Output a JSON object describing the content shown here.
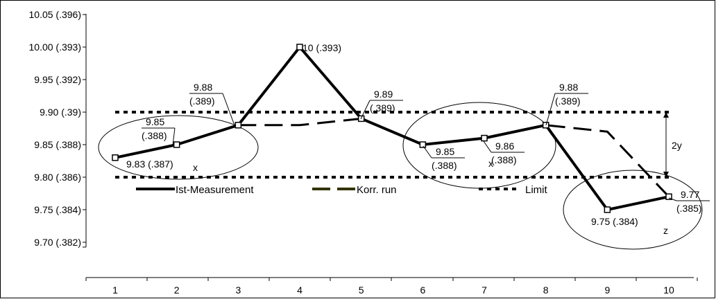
{
  "chart_data": {
    "type": "line",
    "title": "",
    "xlabel": "",
    "ylabel": "",
    "x": [
      1,
      2,
      3,
      4,
      5,
      6,
      7,
      8,
      9,
      10
    ],
    "x_tick_labels": [
      "1",
      "2",
      "3",
      "4",
      "5",
      "6",
      "7",
      "8",
      "9",
      "10"
    ],
    "y_ticks": [
      9.7,
      9.75,
      9.8,
      9.85,
      9.9,
      9.95,
      10.0,
      10.05
    ],
    "y_tick_labels": [
      "9.70 (.382)",
      "9.75 (.384)",
      "9.80 (.386)",
      "9.85 (.388)",
      "9.90 (.39)",
      "9.95 (.392)",
      "10.00 (.393)",
      "10.05 (.396)"
    ],
    "ylim": [
      9.7,
      10.05
    ],
    "grid": false,
    "legend_placement": "bottom-left",
    "series": [
      {
        "name": "Ist-Measurement",
        "style": "solid-thick",
        "color": "#000000",
        "marker": "open-square",
        "x": [
          1,
          2,
          3,
          4,
          5,
          6,
          7,
          8,
          9,
          10
        ],
        "values": [
          9.83,
          9.85,
          9.88,
          10.0,
          9.89,
          9.85,
          9.86,
          9.88,
          9.75,
          9.77
        ]
      },
      {
        "name": "Korr. run",
        "style": "long-dash",
        "color": "#000000",
        "legend_color": "#333300",
        "x": [
          3,
          4,
          5,
          6,
          7,
          8,
          9,
          10
        ],
        "values": [
          9.88,
          9.88,
          9.89,
          9.85,
          9.86,
          9.88,
          9.87,
          9.77
        ]
      },
      {
        "name": "Limit",
        "style": "short-dash",
        "color": "#000000",
        "upper": 9.9,
        "lower": 9.8,
        "x_range": [
          1,
          10
        ]
      }
    ],
    "annotations": [
      {
        "point": 1,
        "lines": [
          "9.83 (.387)"
        ],
        "underline": false
      },
      {
        "point": 2,
        "lines": [
          "9.85",
          "(.388)"
        ],
        "underline": true
      },
      {
        "point": 3,
        "lines": [
          "9.88",
          "(.389)"
        ],
        "underline": true
      },
      {
        "point": 4,
        "lines": [
          "10 (.393)"
        ],
        "underline": false
      },
      {
        "point": 5,
        "lines": [
          "9.89",
          "(.389)"
        ],
        "underline": true
      },
      {
        "point": 6,
        "lines": [
          "9.85",
          "(.388)"
        ],
        "underline": true
      },
      {
        "point": 7,
        "lines": [
          "9.86",
          "(.388)"
        ],
        "underline": true
      },
      {
        "point": 8,
        "lines": [
          "9.88",
          "(.389)"
        ],
        "underline": true
      },
      {
        "point": 9,
        "lines": [
          "9.75 (.384)"
        ],
        "underline": false
      },
      {
        "point": 10,
        "lines": [
          "9.77",
          "(.385)"
        ],
        "underline": true
      }
    ],
    "group_markers": [
      {
        "label": "x",
        "group": "1-3"
      },
      {
        "label": "x",
        "group": "6-8"
      },
      {
        "label": "z",
        "group": "9-10"
      }
    ],
    "range_marker": {
      "label": "2y",
      "from": 9.8,
      "to": 9.9
    }
  }
}
